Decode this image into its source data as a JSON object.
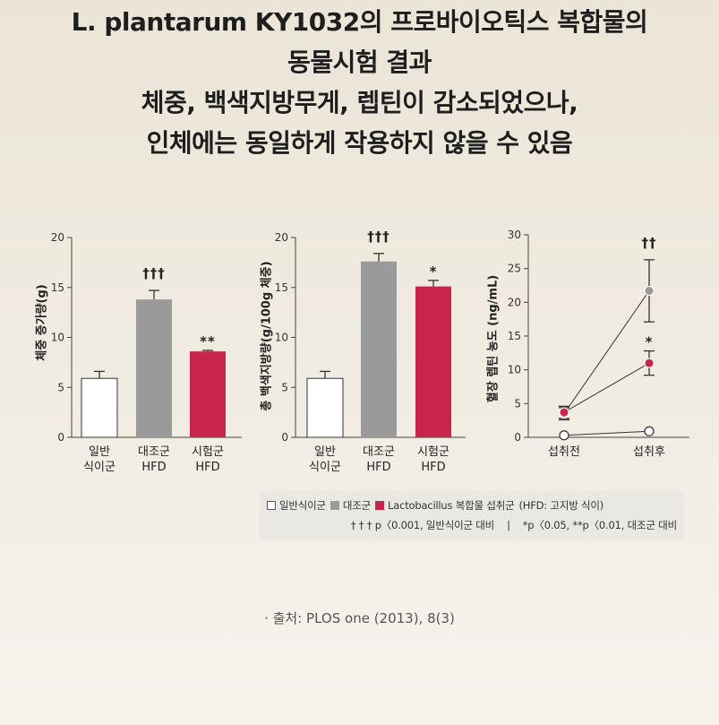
{
  "title": {
    "lines": [
      "L. plantarum KY1032의 프로바이오틱스 복합물의",
      "동물시험 결과",
      "체중, 백색지방무게, 렙틴이 감소되었으나,",
      "인체에는 동일하게 작용하지 않을 수 있음"
    ]
  },
  "colors": {
    "text": "#1e1e1e",
    "normal_diet": "#ffffff",
    "control": "#9a9a9a",
    "treatment": "#c8254b",
    "legend_background": "#eae8e4"
  },
  "chart_data": [
    {
      "type": "bar",
      "ylabel": "체중 증가량(g)",
      "ylim": [
        0,
        20
      ],
      "yticks": [
        0,
        5,
        10,
        15,
        20
      ],
      "categories": [
        [
          "일반",
          "식이군"
        ],
        [
          "대조군",
          "HFD"
        ],
        [
          "시험군",
          "HFD"
        ]
      ],
      "values": [
        5.9,
        13.8,
        8.6
      ],
      "errors": [
        0.7,
        0.9,
        0.1
      ],
      "bar_colors": [
        "#ffffff",
        "#9a9a9a",
        "#c8254b"
      ],
      "annotations": [
        {
          "index": 1,
          "text": "†††"
        },
        {
          "index": 2,
          "text": "**"
        }
      ]
    },
    {
      "type": "bar",
      "ylabel": "총 백색지방량(g/100g 체중)",
      "ylim": [
        0,
        20
      ],
      "yticks": [
        0,
        5,
        10,
        15,
        20
      ],
      "categories": [
        [
          "일반",
          "식이군"
        ],
        [
          "대조군",
          "HFD"
        ],
        [
          "시험군",
          "HFD"
        ]
      ],
      "values": [
        5.9,
        17.6,
        15.1
      ],
      "errors": [
        0.7,
        0.8,
        0.6
      ],
      "bar_colors": [
        "#ffffff",
        "#9a9a9a",
        "#c8254b"
      ],
      "annotations": [
        {
          "index": 1,
          "text": "†††"
        },
        {
          "index": 2,
          "text": "*"
        }
      ]
    },
    {
      "type": "line",
      "ylabel": "혈장 렙틴 농도 (ng/mL)",
      "ylim": [
        0,
        30
      ],
      "yticks": [
        0,
        5,
        10,
        15,
        20,
        25,
        30
      ],
      "x": [
        "섭취전",
        "섭취후"
      ],
      "series": [
        {
          "name": "일반식이군",
          "color": "#ffffff",
          "values": [
            0.3,
            0.9
          ]
        },
        {
          "name": "대조군",
          "color": "#9a9a9a",
          "values": [
            3.5,
            21.7
          ],
          "errors": [
            0.9,
            4.6
          ],
          "annotations": [
            {
              "index": 1,
              "text": "††"
            }
          ]
        },
        {
          "name": "Lactobacillus 복합물 섭취군",
          "color": "#c8254b",
          "values": [
            3.7,
            11.0
          ],
          "errors": [
            0.9,
            1.8
          ],
          "annotations": [
            {
              "index": 1,
              "text": "*"
            }
          ]
        }
      ]
    }
  ],
  "legend": {
    "items": [
      {
        "label": "일반식이군",
        "color": "#ffffff"
      },
      {
        "label": "대조군",
        "color": "#9a9a9a"
      },
      {
        "label": "Lactobacillus 복합물 섭취군",
        "color": "#c8254b"
      }
    ],
    "note": "(HFD: 고지방 식이)",
    "significance": [
      "† † † p〈0.001, 일반식이군 대비",
      "|",
      "*p〈0.05, **p〈0.01, 대조군 대비"
    ]
  },
  "source": "· 출처: PLOS one (2013), 8(3)"
}
